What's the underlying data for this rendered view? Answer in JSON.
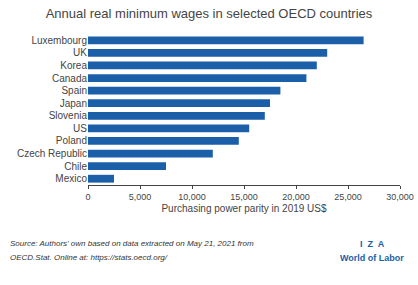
{
  "chart_data": {
    "type": "bar",
    "orientation": "horizontal",
    "title": "Annual real minimum wages in selected OECD countries",
    "categories": [
      "Luxembourg",
      "UK",
      "Korea",
      "Canada",
      "Spain",
      "Japan",
      "Slovenia",
      "US",
      "Poland",
      "Czech Republic",
      "Chile",
      "Mexico"
    ],
    "values": [
      26500,
      23000,
      22000,
      21000,
      18500,
      17500,
      17000,
      15500,
      14500,
      12000,
      7500,
      2500
    ],
    "color": "#1a5fa8",
    "x_label": "Purchasing power parity in 2019 US$",
    "xlim": [
      0,
      30000
    ],
    "xticks": [
      0,
      {
        "value": 5000,
        "label": "5,000"
      },
      {
        "value": 10000,
        "label": "10,000"
      },
      {
        "value": 15000,
        "label": "15,000"
      },
      {
        "value": 20000,
        "label": "20,000"
      },
      {
        "value": 25000,
        "label": "25,000"
      },
      {
        "value": 30000,
        "label": "30,000"
      }
    ],
    "grid": false,
    "annotations": [
      "Source: Authors' own based on data extracted on May 21, 2021 from",
      "OECD.Stat. Online at: https://stats.oecd.org/",
      "I  Z  A",
      "World of Labor"
    ]
  }
}
